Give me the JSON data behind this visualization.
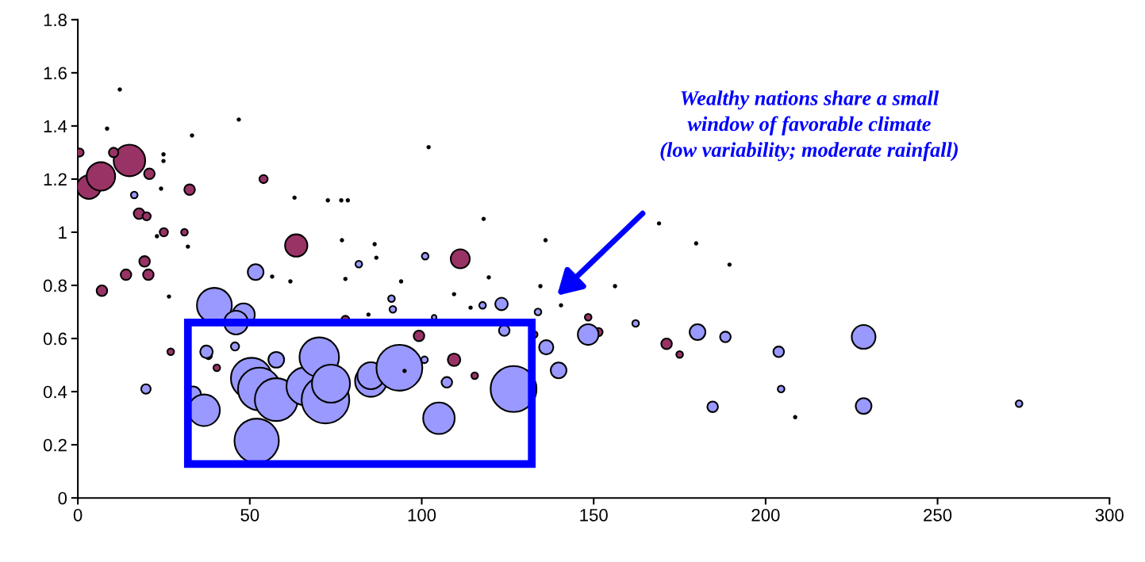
{
  "chart_data": {
    "type": "bubble",
    "relative": false,
    "xlim": [
      0,
      300
    ],
    "xticks": [
      0,
      50,
      100,
      150,
      200,
      250,
      300
    ],
    "ylim": [
      0,
      1.8
    ],
    "yticks": [
      0,
      0.2,
      0.4,
      0.6,
      0.8,
      1,
      1.2,
      1.4,
      1.6,
      1.8
    ],
    "grid": false,
    "legend": false,
    "annotations": [
      "Wealthy nations share a small\nwindow of favorable climate\n(low variability; moderate rainfall)"
    ],
    "series": [
      {
        "color": "#993366",
        "x": [
          0.5,
          3.2,
          6.7,
          15,
          10.4,
          20.8,
          17.8,
          20,
          25,
          31,
          32.5,
          54,
          63.5,
          19.4,
          14,
          20.5,
          7,
          27,
          38,
          40.4,
          77.8,
          99.2,
          109.4,
          115.4,
          111.2,
          148.4,
          151.4,
          171.2,
          175,
          132.7
        ],
        "values": [
          1.3,
          1.17,
          1.21,
          1.27,
          1.3,
          1.22,
          1.07,
          1.06,
          1.0,
          1.0,
          1.16,
          1.2,
          0.95,
          0.89,
          0.84,
          0.84,
          0.78,
          0.55,
          0.535,
          0.49,
          0.67,
          0.61,
          0.52,
          0.46,
          0.9,
          0.68,
          0.624,
          0.58,
          0.54,
          0.615
        ],
        "sizes": [
          0.03,
          0.25,
          0.36,
          0.44,
          0.04,
          0.05,
          0.05,
          0.03,
          0.03,
          0.02,
          0.05,
          0.03,
          0.22,
          0.05,
          0.05,
          0.05,
          0.05,
          0.02,
          0.02,
          0.02,
          0.03,
          0.05,
          0.07,
          0.02,
          0.16,
          0.02,
          0.03,
          0.05,
          0.02,
          0.02
        ]
      },
      {
        "color": "#9999ff",
        "x": [
          16.4,
          51.7,
          81.7,
          39.7,
          48.2,
          46,
          37.4,
          45.7,
          19.8,
          33.5,
          36.7,
          52,
          50.5,
          52.8,
          57.7,
          66.2,
          70.2,
          72,
          73.6,
          57.7,
          85.2,
          85.2,
          93.5,
          105,
          126.7,
          107.3,
          100.8,
          124,
          123.2,
          117.7,
          91.2,
          91.6,
          101,
          103.6,
          133.8,
          136.2,
          139.8,
          148.4,
          162.2,
          180.2,
          188.3,
          203.8,
          204.5,
          184.6,
          228.5,
          228.5,
          273.7
        ],
        "values": [
          1.14,
          0.85,
          0.88,
          0.725,
          0.69,
          0.66,
          0.55,
          0.57,
          0.41,
          0.39,
          0.33,
          0.215,
          0.45,
          0.41,
          0.37,
          0.42,
          0.53,
          0.37,
          0.43,
          0.52,
          0.44,
          0.46,
          0.49,
          0.3,
          0.41,
          0.435,
          0.52,
          0.63,
          0.73,
          0.725,
          0.75,
          0.71,
          0.91,
          0.68,
          0.7,
          0.567,
          0.48,
          0.615,
          0.657,
          0.624,
          0.606,
          0.55,
          0.41,
          0.343,
          0.606,
          0.346,
          0.355
        ],
        "sizes": [
          0.02,
          0.11,
          0.02,
          0.54,
          0.22,
          0.25,
          0.07,
          0.03,
          0.04,
          0.11,
          0.44,
          0.87,
          0.75,
          0.81,
          0.81,
          0.64,
          0.69,
          1,
          0.64,
          0.11,
          0.44,
          0.32,
          0.93,
          0.44,
          0.93,
          0.05,
          0.02,
          0.05,
          0.07,
          0.02,
          0.02,
          0.02,
          0.02,
          0.01,
          0.02,
          0.09,
          0.11,
          0.19,
          0.02,
          0.11,
          0.05,
          0.05,
          0.02,
          0.05,
          0.25,
          0.11,
          0.02
        ]
      },
      {
        "color": "#000000",
        "x": [
          12.2,
          8.5,
          33.2,
          46.8,
          102,
          24.9,
          24.9,
          24.2,
          63,
          72.7,
          76.6,
          78.5,
          23,
          32,
          76.8,
          56.5,
          61.8,
          77.8,
          26.5,
          118,
          86.3,
          86.8,
          94,
          136,
          119.5,
          109.4,
          114.2,
          134.5,
          84.5,
          140.5,
          169,
          179.8,
          189.5,
          156.2,
          208.6,
          95
        ],
        "values": [
          1.537,
          1.39,
          1.364,
          1.424,
          1.32,
          1.293,
          1.268,
          1.164,
          1.13,
          1.12,
          1.12,
          1.12,
          0.985,
          0.946,
          0.97,
          0.833,
          0.815,
          0.824,
          0.758,
          1.05,
          0.955,
          0.904,
          0.815,
          0.97,
          0.83,
          0.767,
          0.716,
          0.797,
          0.69,
          0.725,
          1.033,
          0.958,
          0.878,
          0.797,
          0.304,
          0.478
        ],
        "sizes": [
          0.003,
          0.003,
          0.003,
          0.003,
          0.003,
          0.003,
          0.003,
          0.003,
          0.003,
          0.003,
          0.003,
          0.003,
          0.003,
          0.003,
          0.003,
          0.003,
          0.003,
          0.003,
          0.003,
          0.003,
          0.003,
          0.003,
          0.003,
          0.003,
          0.003,
          0.003,
          0.003,
          0.003,
          0.003,
          0.003,
          0.003,
          0.003,
          0.003,
          0.003,
          0.003,
          0.003
        ]
      }
    ]
  }
}
